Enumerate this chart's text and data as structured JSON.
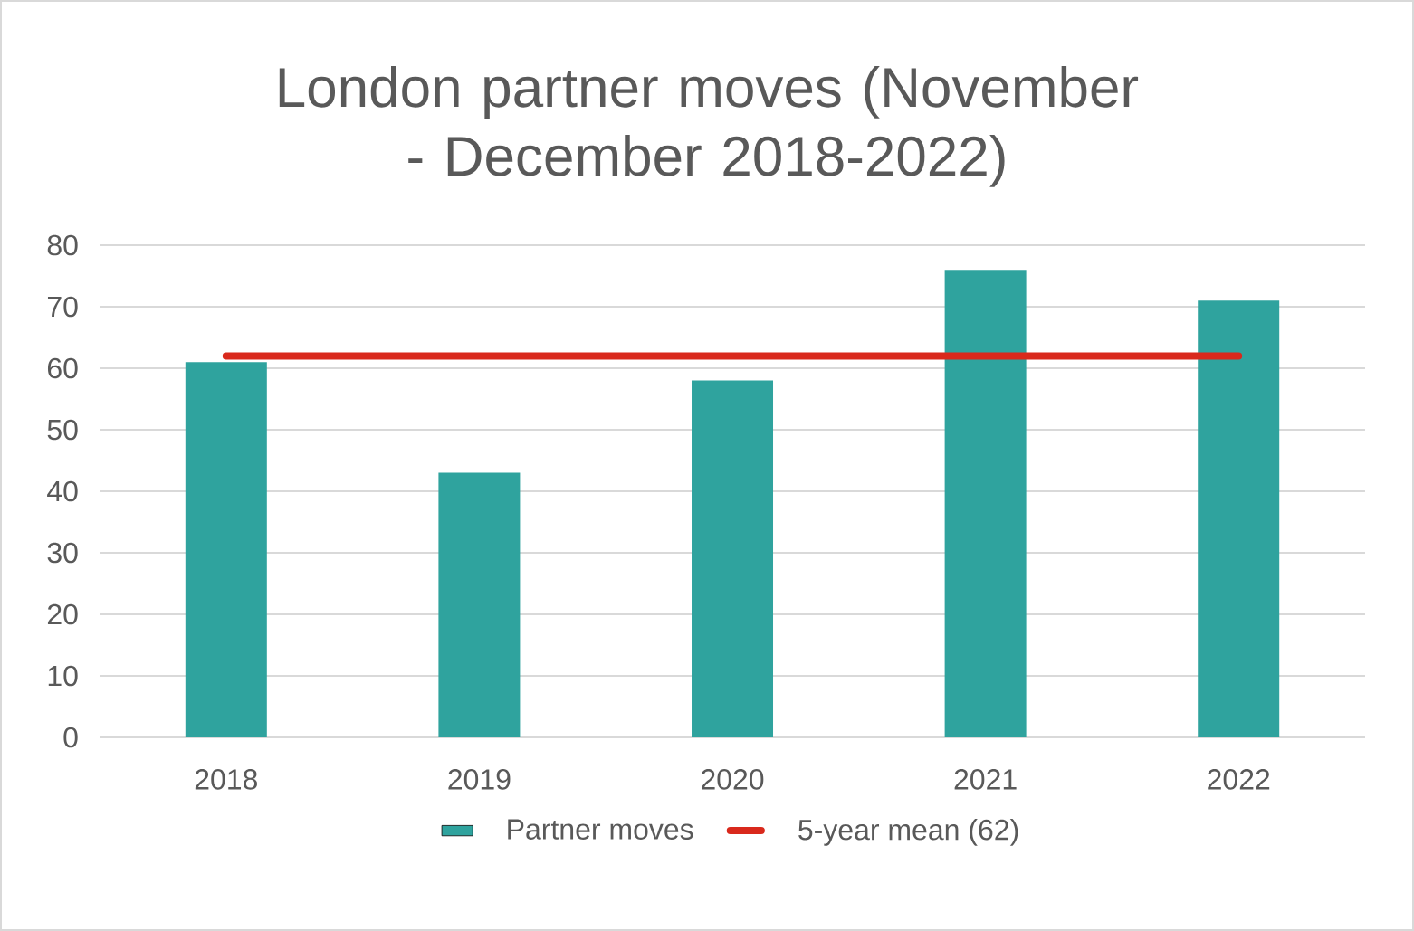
{
  "chart_data": {
    "type": "bar",
    "title": "London partner moves (November - December 2018-2022)",
    "categories": [
      "2018",
      "2019",
      "2020",
      "2021",
      "2022"
    ],
    "series": [
      {
        "name": "Partner moves",
        "color": "#2fa39e",
        "values": [
          61,
          43,
          58,
          76,
          71
        ]
      },
      {
        "name": "5-year mean (62)",
        "type": "line",
        "color": "#d9291c",
        "values": [
          62,
          62,
          62,
          62,
          62
        ]
      }
    ],
    "ylim": [
      0,
      80
    ],
    "yticks": [
      0,
      10,
      20,
      30,
      40,
      50,
      60,
      70,
      80
    ],
    "grid": "y",
    "legend": "bottom",
    "marker": "none"
  }
}
